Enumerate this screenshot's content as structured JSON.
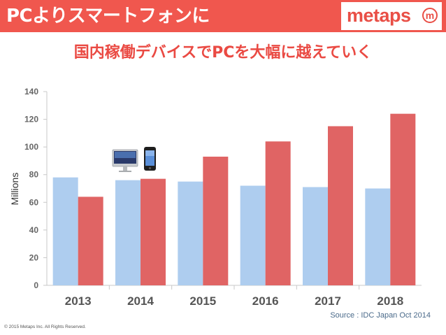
{
  "header": {
    "title": "PCよりスマートフォンに",
    "logo_text": "metaps",
    "logo_mark": "m",
    "bg_color": "#f0574e"
  },
  "subtitle": "国内稼働デバイスでPCを大幅に越えていく",
  "chart_data": {
    "type": "bar",
    "categories": [
      "2013",
      "2014",
      "2015",
      "2016",
      "2017",
      "2018"
    ],
    "series": [
      {
        "color": "#aecdef",
        "values": [
          78,
          76,
          75,
          72,
          71,
          70
        ]
      },
      {
        "color": "#e06464",
        "values": [
          64,
          77,
          93,
          104,
          115,
          124
        ]
      }
    ],
    "ylabel": "Millions",
    "ylim": [
      0,
      140
    ],
    "yticks": [
      0,
      20,
      40,
      60,
      80,
      100,
      120,
      140
    ],
    "grid": false,
    "legend_icons": [
      "desktop-computer-icon",
      "smartphone-icon"
    ]
  },
  "source": "Source : IDC Japan Oct 2014",
  "copyright": "© 2015 Metaps Inc. All Rights Reserved."
}
